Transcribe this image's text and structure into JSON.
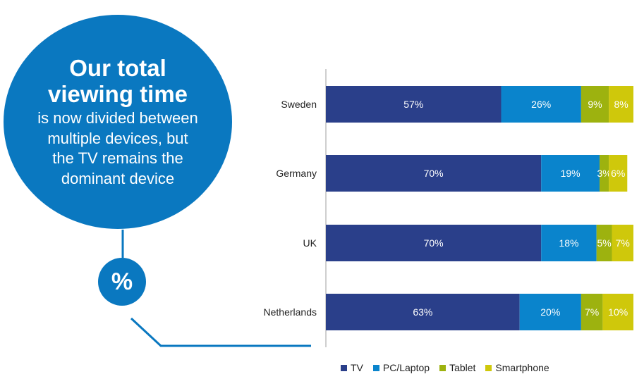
{
  "callout": {
    "headline": "Our total viewing time",
    "body": "is now divided between multiple devices, but the TV remains the dominant device",
    "badge": "%"
  },
  "colors": {
    "accent": "#0a78c0",
    "text": "#222222"
  },
  "chart_data": {
    "type": "bar",
    "orientation": "horizontal",
    "stacked": true,
    "categories": [
      "Sweden",
      "Germany",
      "UK",
      "Netherlands"
    ],
    "series": [
      {
        "name": "TV",
        "color": "#2a3f8a",
        "values": [
          57,
          70,
          70,
          63
        ],
        "labels": [
          "57%",
          "70%",
          "70%",
          "63%"
        ]
      },
      {
        "name": "PC/Laptop",
        "color": "#0a84cc",
        "values": [
          26,
          19,
          18,
          20
        ],
        "labels": [
          "26%",
          "19%",
          "18%",
          "20%"
        ]
      },
      {
        "name": "Tablet",
        "color": "#9db20f",
        "values": [
          9,
          3,
          5,
          7
        ],
        "labels": [
          "9%",
          "3%",
          "5%",
          "7%"
        ]
      },
      {
        "name": "Smartphone",
        "color": "#cfc80b",
        "values": [
          8,
          6,
          7,
          10
        ],
        "labels": [
          "8%",
          "6%",
          "7%",
          "10%"
        ]
      }
    ],
    "xlim": [
      0,
      100
    ],
    "legend_position": "bottom",
    "grid": false
  }
}
